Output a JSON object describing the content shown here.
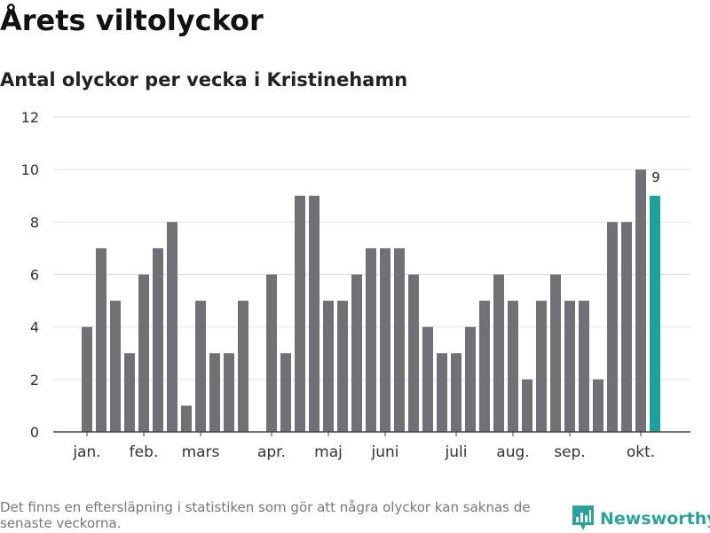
{
  "header": {
    "title": "Årets viltolyckor",
    "subtitle": "Antal olyckor per vecka i Kristinehamn"
  },
  "chart_data": {
    "type": "bar",
    "title": "Årets viltolyckor",
    "subtitle": "Antal olyckor per vecka i Kristinehamn",
    "xlabel": "",
    "ylabel": "",
    "ylim": [
      0,
      12
    ],
    "yticks": [
      0,
      2,
      4,
      6,
      8,
      10,
      12
    ],
    "grid": true,
    "week_count": 42,
    "month_labels": [
      {
        "label": "jan.",
        "week": 2
      },
      {
        "label": "feb.",
        "week": 6
      },
      {
        "label": "mars",
        "week": 10
      },
      {
        "label": "apr.",
        "week": 15
      },
      {
        "label": "maj",
        "week": 19
      },
      {
        "label": "juni",
        "week": 23
      },
      {
        "label": "juli",
        "week": 28
      },
      {
        "label": "aug.",
        "week": 32
      },
      {
        "label": "sep.",
        "week": 36
      },
      {
        "label": "okt.",
        "week": 41
      }
    ],
    "series": [
      {
        "name": "Antal olyckor",
        "weeks": [
          2,
          3,
          4,
          5,
          6,
          7,
          8,
          9,
          10,
          11,
          12,
          13,
          15,
          16,
          17,
          18,
          19,
          20,
          21,
          22,
          23,
          24,
          25,
          26,
          27,
          28,
          29,
          30,
          31,
          32,
          33,
          34,
          35,
          36,
          37,
          38,
          39,
          40,
          41,
          42
        ],
        "values": [
          4,
          7,
          5,
          3,
          6,
          7,
          8,
          1,
          5,
          3,
          3,
          5,
          6,
          3,
          9,
          9,
          5,
          5,
          6,
          7,
          7,
          7,
          6,
          4,
          3,
          3,
          4,
          5,
          6,
          5,
          2,
          5,
          6,
          5,
          5,
          2,
          8,
          8,
          10,
          9
        ]
      }
    ],
    "highlight": {
      "week": 42,
      "value": 9,
      "label": "9"
    },
    "colors": {
      "bar": "#717074",
      "highlight": "#1aa39a",
      "grid": "#e2e2e2",
      "axis": "#444444"
    }
  },
  "footer": {
    "note": "Det finns en eftersläpning i statistiken som gör att några olyckor kan saknas de senaste veckorna.",
    "brand": "Newsworthy",
    "brand_icon": "bar-chart-logo-icon"
  }
}
